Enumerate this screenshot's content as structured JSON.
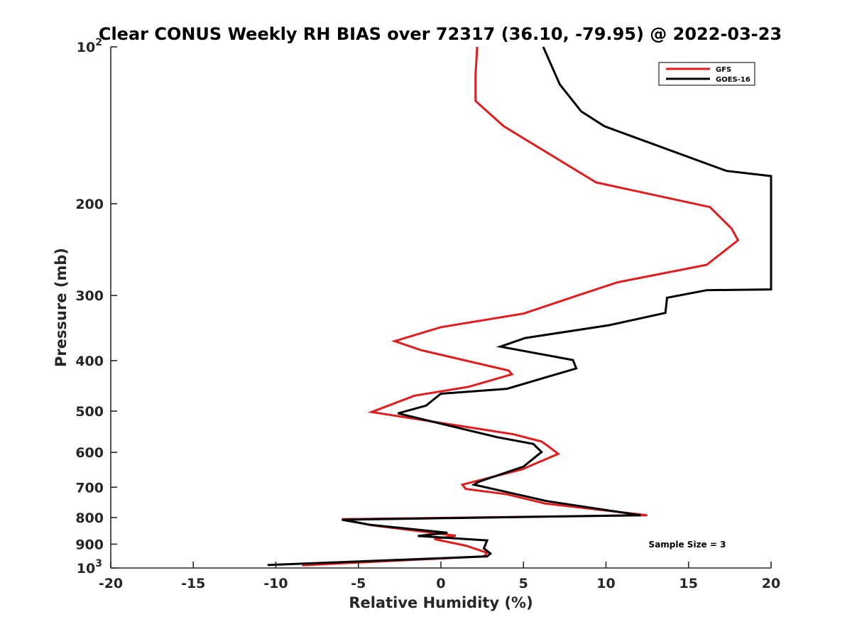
{
  "chart_data": {
    "type": "line",
    "title": "Clear CONUS Weekly RH BIAS over 72317 (36.10, -79.95) @ 2022-03-23",
    "xlabel": "Relative Humidity (%)",
    "ylabel": "Pressure (mb)",
    "xlim": [
      -20,
      20
    ],
    "ylim": [
      100,
      1000
    ],
    "y_scale": "log",
    "y_reversed": true,
    "grid": false,
    "legend_position": "top-right",
    "x_ticks": [
      "-20",
      "-15",
      "-10",
      "-5",
      "0",
      "5",
      "10",
      "15",
      "20"
    ],
    "y_ticks": [
      "200",
      "300",
      "400",
      "500",
      "600",
      "700",
      "800",
      "900"
    ],
    "y_ticks_pow": [
      {
        "base": "10",
        "exp": "2"
      },
      {
        "base": "10",
        "exp": "3"
      }
    ],
    "annotation": "Sample Size = 3",
    "series": [
      {
        "name": "GFS",
        "color": "#e41a1c",
        "points": [
          [
            2.2,
            100
          ],
          [
            2.1,
            113
          ],
          [
            2.1,
            127
          ],
          [
            3.8,
            142
          ],
          [
            9.4,
            182
          ],
          [
            16.3,
            203
          ],
          [
            17.6,
            223
          ],
          [
            18.0,
            235
          ],
          [
            16.1,
            262
          ],
          [
            10.7,
            283
          ],
          [
            8.0,
            302
          ],
          [
            5.0,
            325
          ],
          [
            0.0,
            345
          ],
          [
            -2.8,
            367
          ],
          [
            -1.2,
            382
          ],
          [
            4.1,
            418
          ],
          [
            4.3,
            425
          ],
          [
            1.7,
            449
          ],
          [
            -1.6,
            467
          ],
          [
            -4.2,
            502
          ],
          [
            4.4,
            554
          ],
          [
            6.1,
            572
          ],
          [
            6.6,
            587
          ],
          [
            7.1,
            604
          ],
          [
            4.9,
            647
          ],
          [
            1.3,
            692
          ],
          [
            1.5,
            705
          ],
          [
            4.0,
            722
          ],
          [
            6.3,
            752
          ],
          [
            12.5,
            792
          ],
          [
            -6.0,
            806
          ],
          [
            -4.2,
            828
          ],
          [
            0.9,
            867
          ],
          [
            -0.4,
            880
          ],
          [
            1.5,
            906
          ],
          [
            2.8,
            935
          ],
          [
            2.6,
            950
          ],
          [
            -5.0,
            976
          ],
          [
            -8.4,
            988
          ]
        ]
      },
      {
        "name": "GOES-16",
        "color": "#000000",
        "points": [
          [
            6.2,
            100
          ],
          [
            7.2,
            118
          ],
          [
            8.5,
            133
          ],
          [
            9.9,
            142
          ],
          [
            17.3,
            173
          ],
          [
            20.0,
            177
          ],
          [
            20.0,
            292
          ],
          [
            16.1,
            293
          ],
          [
            13.7,
            303
          ],
          [
            13.6,
            324
          ],
          [
            10.2,
            342
          ],
          [
            5.1,
            362
          ],
          [
            3.6,
            376
          ],
          [
            8.0,
            399
          ],
          [
            8.2,
            414
          ],
          [
            4.0,
            453
          ],
          [
            0.0,
            463
          ],
          [
            -0.9,
            488
          ],
          [
            -2.6,
            505
          ],
          [
            3.4,
            561
          ],
          [
            5.6,
            578
          ],
          [
            6.1,
            599
          ],
          [
            5.0,
            639
          ],
          [
            2.3,
            683
          ],
          [
            2.0,
            692
          ],
          [
            4.5,
            721
          ],
          [
            6.4,
            744
          ],
          [
            12.1,
            792
          ],
          [
            -6.0,
            808
          ],
          [
            -4.3,
            826
          ],
          [
            0.4,
            856
          ],
          [
            -1.4,
            868
          ],
          [
            2.8,
            885
          ],
          [
            2.6,
            917
          ],
          [
            3.0,
            938
          ],
          [
            2.8,
            950
          ],
          [
            -10.5,
            987
          ]
        ]
      }
    ]
  }
}
